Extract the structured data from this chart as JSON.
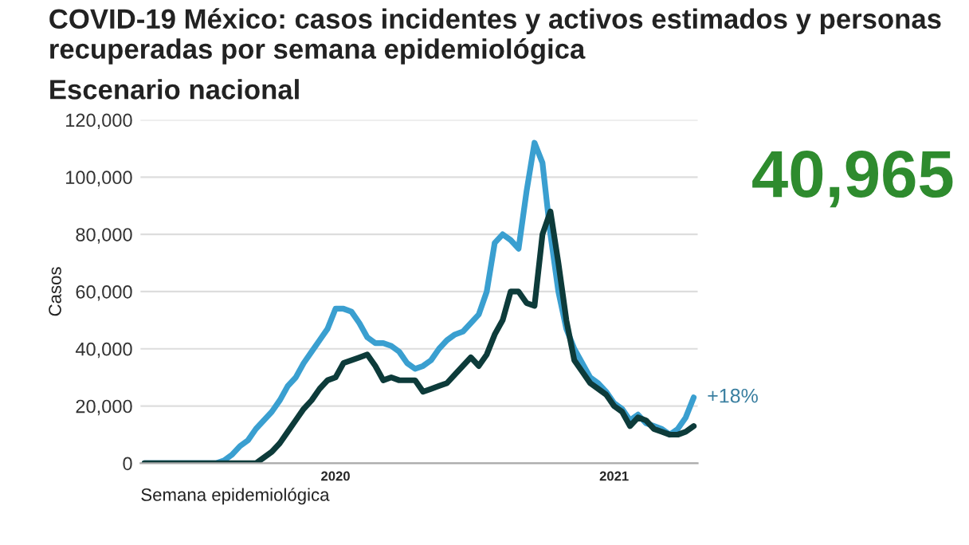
{
  "chart_data": {
    "type": "line",
    "title": "COVID-19 México: casos incidentes y activos estimados y personas recuperadas por semana epidemiológica",
    "subtitle": "Escenario nacional",
    "xlabel": "Semana epidemiológica",
    "ylabel": "Casos",
    "annotations": [
      "40,965",
      "+18%"
    ],
    "categories": [
      null,
      null,
      null,
      null,
      null,
      null,
      null,
      null,
      null,
      null,
      null,
      null,
      null,
      null,
      null,
      null,
      null,
      null,
      null,
      null,
      null,
      null,
      null,
      null,
      "2020",
      null,
      null,
      null,
      null,
      null,
      null,
      null,
      null,
      null,
      null,
      null,
      null,
      null,
      null,
      null,
      null,
      null,
      null,
      null,
      null,
      null,
      null,
      null,
      null,
      null,
      null,
      null,
      null,
      null,
      null,
      null,
      null,
      null,
      null,
      "2021",
      null,
      null,
      null,
      null,
      null,
      null,
      null,
      null,
      null,
      null
    ],
    "ylim": [
      0,
      120000
    ],
    "yticks": [
      {
        "value": 0,
        "label": "0"
      },
      {
        "value": 20000,
        "label": "20,000"
      },
      {
        "value": 40000,
        "label": "40,000"
      },
      {
        "value": 60000,
        "label": "60,000"
      },
      {
        "value": 80000,
        "label": "80,000"
      },
      {
        "value": 100000,
        "label": "100,000"
      },
      {
        "value": 120000,
        "label": "120,000"
      }
    ],
    "grid": "y",
    "marker": "none",
    "line_style": "solid",
    "series": [
      {
        "color": "#3a9fd0",
        "values": [
          0,
          0,
          0,
          0,
          0,
          0,
          0,
          0,
          0,
          0,
          1000,
          3000,
          6000,
          8000,
          12000,
          15000,
          18000,
          22000,
          27000,
          30000,
          35000,
          39000,
          43000,
          47000,
          54000,
          54000,
          53000,
          49000,
          44000,
          42000,
          42000,
          41000,
          39000,
          35000,
          33000,
          34000,
          36000,
          40000,
          43000,
          45000,
          46000,
          49000,
          52000,
          60000,
          77000,
          80000,
          78000,
          75000,
          95000,
          112000,
          105000,
          80000,
          60000,
          47000,
          40000,
          35000,
          30000,
          28000,
          25000,
          21000,
          19000,
          15000,
          17000,
          14000,
          13000,
          12000,
          10000,
          12000,
          16000,
          23000
        ]
      },
      {
        "color": "#0d3b3a",
        "values": [
          0,
          0,
          0,
          0,
          0,
          0,
          0,
          0,
          0,
          0,
          0,
          0,
          0,
          0,
          0,
          2000,
          4000,
          7000,
          11000,
          15000,
          19000,
          22000,
          26000,
          29000,
          30000,
          35000,
          36000,
          37000,
          38000,
          34000,
          29000,
          30000,
          29000,
          29000,
          29000,
          25000,
          26000,
          27000,
          28000,
          31000,
          34000,
          37000,
          34000,
          38000,
          45000,
          50000,
          60000,
          60000,
          56000,
          55000,
          80000,
          88000,
          70000,
          50000,
          36000,
          32000,
          28000,
          26000,
          24000,
          20000,
          18000,
          13000,
          16000,
          15000,
          12000,
          11000,
          10000,
          10000,
          11000,
          13000
        ]
      }
    ]
  }
}
